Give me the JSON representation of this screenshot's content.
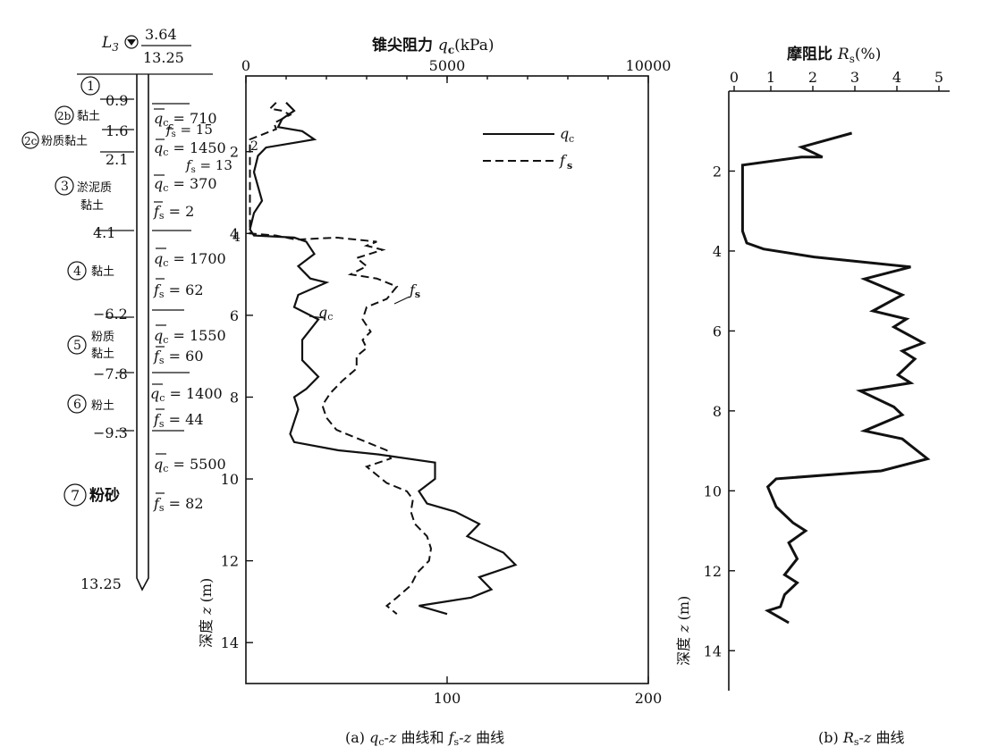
{
  "chart_data": [
    {
      "type": "line",
      "caption_prefix": "(a)",
      "caption": "q_c-z 曲线和 f_s-z 曲线",
      "top_axis_label": "锥尖阻力 q_c (kPa)",
      "top_ticks": [
        "0",
        "5000",
        "10000"
      ],
      "top_range": [
        0,
        10000
      ],
      "bottom_ticks": [
        "100",
        "200"
      ],
      "bottom_range": [
        0,
        200
      ],
      "ylabel": "深度 z (m)",
      "y_ticks": [
        "2",
        "4",
        "6",
        "8",
        "10",
        "12",
        "14"
      ],
      "ylim": [
        0,
        15
      ],
      "legend": [
        {
          "name": "q_c",
          "style": "solid"
        },
        {
          "name": "f_s",
          "style": "dashed"
        }
      ],
      "in_plot_labels": [
        "q_c",
        "f_s",
        "2",
        "4"
      ],
      "series": [
        {
          "name": "q_c",
          "axis": "top",
          "points": [
            [
              1000,
              0.8
            ],
            [
              1200,
              1.0
            ],
            [
              900,
              1.2
            ],
            [
              800,
              1.4
            ],
            [
              1400,
              1.5
            ],
            [
              1700,
              1.7
            ],
            [
              1400,
              1.75
            ],
            [
              500,
              1.9
            ],
            [
              300,
              2.1
            ],
            [
              200,
              2.5
            ],
            [
              400,
              3.2
            ],
            [
              200,
              3.5
            ],
            [
              100,
              3.9
            ],
            [
              200,
              4.05
            ],
            [
              1200,
              4.1
            ],
            [
              1500,
              4.2
            ],
            [
              1700,
              4.5
            ],
            [
              1300,
              4.8
            ],
            [
              1600,
              5.1
            ],
            [
              2000,
              5.2
            ],
            [
              1300,
              5.5
            ],
            [
              1200,
              5.8
            ],
            [
              1800,
              6.1
            ],
            [
              1400,
              6.6
            ],
            [
              1400,
              7.1
            ],
            [
              1800,
              7.5
            ],
            [
              1500,
              7.8
            ],
            [
              1200,
              8.0
            ],
            [
              1300,
              8.3
            ],
            [
              1200,
              8.6
            ],
            [
              1100,
              8.9
            ],
            [
              1200,
              9.1
            ],
            [
              2300,
              9.3
            ],
            [
              3300,
              9.4
            ],
            [
              4700,
              9.6
            ],
            [
              4700,
              10.0
            ],
            [
              4300,
              10.3
            ],
            [
              4500,
              10.6
            ],
            [
              5200,
              10.8
            ],
            [
              5800,
              11.1
            ],
            [
              5500,
              11.4
            ],
            [
              6400,
              11.8
            ],
            [
              6700,
              12.1
            ],
            [
              5800,
              12.4
            ],
            [
              6100,
              12.7
            ],
            [
              5600,
              12.9
            ],
            [
              4300,
              13.1
            ],
            [
              5000,
              13.3
            ]
          ]
        },
        {
          "name": "f_s",
          "axis": "bottom",
          "points": [
            [
              15,
              0.8
            ],
            [
              12,
              0.95
            ],
            [
              18,
              1.0
            ],
            [
              22,
              1.1
            ],
            [
              14,
              1.3
            ],
            [
              15,
              1.45
            ],
            [
              2,
              1.7
            ],
            [
              2,
              2.1
            ],
            [
              2,
              3.0
            ],
            [
              2,
              3.8
            ],
            [
              2,
              4.0
            ],
            [
              15,
              4.05
            ],
            [
              25,
              4.15
            ],
            [
              45,
              4.1
            ],
            [
              65,
              4.2
            ],
            [
              60,
              4.3
            ],
            [
              68,
              4.4
            ],
            [
              55,
              4.6
            ],
            [
              60,
              4.8
            ],
            [
              52,
              5.0
            ],
            [
              65,
              5.1
            ],
            [
              75,
              5.3
            ],
            [
              70,
              5.6
            ],
            [
              60,
              5.8
            ],
            [
              58,
              6.1
            ],
            [
              62,
              6.4
            ],
            [
              58,
              6.6
            ],
            [
              60,
              6.8
            ],
            [
              55,
              7.0
            ],
            [
              55,
              7.3
            ],
            [
              48,
              7.6
            ],
            [
              42,
              7.9
            ],
            [
              38,
              8.2
            ],
            [
              40,
              8.5
            ],
            [
              45,
              8.8
            ],
            [
              55,
              9.0
            ],
            [
              70,
              9.3
            ],
            [
              72,
              9.5
            ],
            [
              60,
              9.7
            ],
            [
              65,
              9.9
            ],
            [
              70,
              10.1
            ],
            [
              80,
              10.3
            ],
            [
              83,
              10.5
            ],
            [
              82,
              10.8
            ],
            [
              84,
              11.1
            ],
            [
              90,
              11.4
            ],
            [
              92,
              11.7
            ],
            [
              91,
              12.0
            ],
            [
              85,
              12.3
            ],
            [
              82,
              12.6
            ],
            [
              75,
              12.9
            ],
            [
              70,
              13.1
            ],
            [
              75,
              13.3
            ]
          ]
        }
      ]
    },
    {
      "type": "line",
      "caption_prefix": "(b)",
      "caption": "R_s-z 曲线",
      "top_axis_label": "摩阻比 R_s (%)",
      "x_ticks": [
        "0",
        "1",
        "2",
        "3",
        "4",
        "5"
      ],
      "xlim": [
        0,
        5
      ],
      "ylabel": "深度 z (m)",
      "y_ticks": [
        "2",
        "4",
        "6",
        "8",
        "10",
        "12",
        "14"
      ],
      "ylim": [
        0,
        15
      ],
      "series": [
        {
          "name": "R_s",
          "points": [
            [
              2.8,
              1.05
            ],
            [
              1.6,
              1.4
            ],
            [
              2.1,
              1.65
            ],
            [
              1.6,
              1.65
            ],
            [
              0.2,
              1.85
            ],
            [
              0.2,
              2.5
            ],
            [
              0.2,
              3.0
            ],
            [
              0.2,
              3.5
            ],
            [
              0.3,
              3.8
            ],
            [
              0.7,
              3.95
            ],
            [
              1.9,
              4.15
            ],
            [
              4.2,
              4.4
            ],
            [
              3.1,
              4.7
            ],
            [
              4.0,
              5.1
            ],
            [
              3.3,
              5.5
            ],
            [
              4.1,
              5.7
            ],
            [
              3.8,
              5.9
            ],
            [
              4.5,
              6.3
            ],
            [
              4.0,
              6.5
            ],
            [
              4.3,
              6.7
            ],
            [
              3.9,
              7.1
            ],
            [
              4.2,
              7.3
            ],
            [
              3.0,
              7.5
            ],
            [
              3.8,
              7.9
            ],
            [
              4.0,
              8.1
            ],
            [
              3.1,
              8.5
            ],
            [
              4.0,
              8.7
            ],
            [
              4.6,
              9.2
            ],
            [
              3.5,
              9.5
            ],
            [
              1.0,
              9.7
            ],
            [
              0.8,
              9.9
            ],
            [
              1.0,
              10.4
            ],
            [
              1.4,
              10.8
            ],
            [
              1.7,
              11.0
            ],
            [
              1.3,
              11.3
            ],
            [
              1.5,
              11.7
            ],
            [
              1.2,
              12.1
            ],
            [
              1.5,
              12.3
            ],
            [
              1.2,
              12.6
            ],
            [
              1.1,
              12.9
            ],
            [
              0.8,
              13.0
            ],
            [
              1.3,
              13.3
            ]
          ]
        }
      ]
    }
  ],
  "borehole": {
    "water_level_prefix": "L",
    "water_level_sub": "3",
    "level_top": "3.64",
    "level_bottom": "13.25",
    "bottom_depth": "13.25",
    "layers": [
      {
        "num": "1",
        "name": "",
        "depth": "0.9"
      },
      {
        "num": "2b",
        "name": "黏土",
        "depth": "1.6"
      },
      {
        "num": "2c",
        "name": "粉质黏土",
        "depth": "2.1"
      },
      {
        "num": "3",
        "name": "淤泥质黏土",
        "depth": "4.1"
      },
      {
        "num": "4",
        "name": "黏土",
        "depth": "6.2"
      },
      {
        "num": "5",
        "name": "粉质黏土",
        "depth": "7.8"
      },
      {
        "num": "6",
        "name": "粉土",
        "depth": "9.3"
      },
      {
        "num": "7",
        "name": "粉砂",
        "depth": ""
      }
    ],
    "stats": [
      "q_c = 710",
      "f_s = 15",
      "q_c = 1450",
      "f_s = 13",
      "q_c = 370",
      "f_s = 2",
      "q_c = 1700",
      "f_s = 62",
      "q_c = 1550",
      "f_s = 60",
      "q_c = 1400",
      "f_s = 44",
      "q_c = 5500",
      "f_s = 82"
    ]
  }
}
